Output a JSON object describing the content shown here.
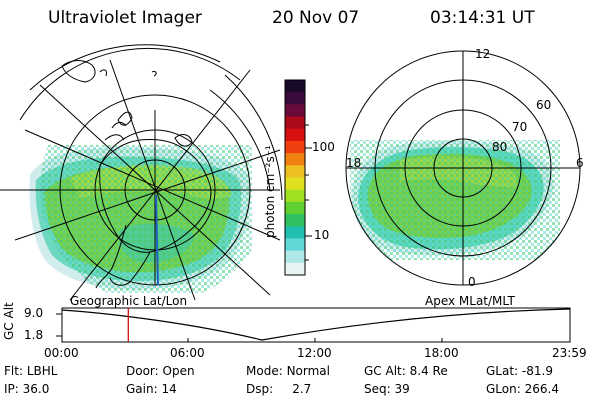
{
  "header": {
    "instrument": "Ultraviolet Imager",
    "date": "20 Nov 07",
    "time": "03:14:31 UT"
  },
  "colorbar": {
    "unit_label": "photon cm⁻²s⁻¹",
    "ticks": [
      "100",
      "10"
    ],
    "colors": [
      "#1a0a2a",
      "#3a0a3a",
      "#6a0a3a",
      "#aa0a1a",
      "#d81010",
      "#f04010",
      "#f08010",
      "#f0c020",
      "#e0e020",
      "#a0e020",
      "#60d030",
      "#30c060",
      "#20c0b0",
      "#60d8d8",
      "#b0e8e8",
      "#e8f4f4"
    ]
  },
  "left_map": {
    "projection_label": "Geographic Lat/Lon"
  },
  "right_map": {
    "projection_label": "Apex MLat/MLT",
    "lat_labels": [
      "80",
      "70",
      "60"
    ],
    "mlt_labels": {
      "top": "12",
      "left": "18",
      "right": "6",
      "bottom": "0"
    }
  },
  "timeline": {
    "axis_title": "GC Alt",
    "y_ticks": [
      "9.0",
      "1.8"
    ],
    "x_ticks": [
      "00:00",
      "06:00",
      "12:00",
      "18:00",
      "23:59"
    ],
    "current_time_fraction": 0.1305
  },
  "status": {
    "row1": [
      {
        "key": "Flt:",
        "value": "LBHL"
      },
      {
        "key": "Door:",
        "value": "Open"
      },
      {
        "key": "Mode:",
        "value": "Normal"
      },
      {
        "key": "GC Alt:",
        "value": "8.4 Re"
      },
      {
        "key": "GLat:",
        "value": "-81.9"
      }
    ],
    "row2": [
      {
        "key": "IP:",
        "value": "36.0"
      },
      {
        "key": "Gain:",
        "value": "14"
      },
      {
        "key": "Dsp:",
        "value": "2.7"
      },
      {
        "key": "Seq:",
        "value": "39"
      },
      {
        "key": "GLon:",
        "value": "266.4"
      }
    ]
  }
}
